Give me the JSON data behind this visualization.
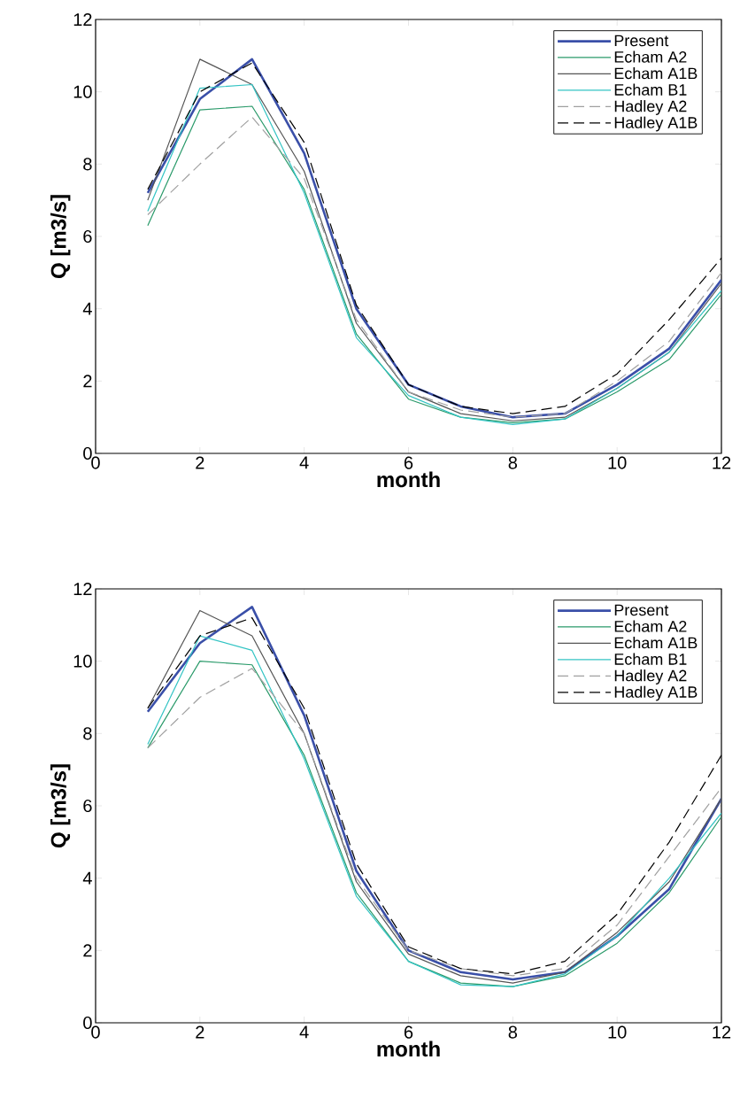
{
  "chart_data": [
    {
      "type": "line",
      "xlabel": "month",
      "ylabel": "Q [m3/s]",
      "x": [
        1,
        2,
        3,
        4,
        5,
        6,
        7,
        8,
        9,
        10,
        11,
        12
      ],
      "xlim": [
        0,
        12
      ],
      "ylim": [
        0,
        12
      ],
      "xticks": [
        0,
        2,
        4,
        6,
        8,
        10,
        12
      ],
      "yticks": [
        0,
        2,
        4,
        6,
        8,
        10,
        12
      ],
      "legend": "top right",
      "grid": false,
      "series": [
        {
          "name": "Present",
          "color": "#3a4fa8",
          "line_style": "solid",
          "values": [
            7.2,
            9.8,
            10.9,
            8.3,
            4.0,
            1.9,
            1.3,
            1.0,
            1.1,
            1.9,
            2.9,
            4.8
          ]
        },
        {
          "name": "Echam A2",
          "color": "#2a9a6a",
          "line_style": "solid",
          "values": [
            6.3,
            9.5,
            9.6,
            7.3,
            3.3,
            1.5,
            1.0,
            0.85,
            0.95,
            1.7,
            2.6,
            4.4
          ]
        },
        {
          "name": "Echam A1B",
          "color": "#555555",
          "line_style": "solid",
          "values": [
            7.0,
            10.9,
            10.2,
            7.8,
            3.6,
            1.7,
            1.1,
            0.9,
            1.0,
            1.8,
            2.8,
            4.7
          ]
        },
        {
          "name": "Echam B1",
          "color": "#33c4c4",
          "line_style": "solid",
          "values": [
            6.7,
            10.1,
            10.2,
            7.2,
            3.2,
            1.6,
            1.0,
            0.8,
            0.95,
            1.8,
            2.8,
            4.5
          ]
        },
        {
          "name": "Hadley A2",
          "color": "#a0a0a0",
          "line_style": "dashed",
          "values": [
            6.6,
            8.0,
            9.3,
            7.6,
            3.7,
            1.7,
            1.2,
            1.0,
            1.1,
            2.0,
            3.1,
            5.0
          ]
        },
        {
          "name": "Hadley A1B",
          "color": "#000000",
          "line_style": "dashed",
          "values": [
            7.3,
            10.0,
            10.8,
            8.6,
            4.1,
            1.9,
            1.3,
            1.1,
            1.3,
            2.2,
            3.7,
            5.4
          ]
        }
      ]
    },
    {
      "type": "line",
      "xlabel": "month",
      "ylabel": "Q [m3/s]",
      "x": [
        1,
        2,
        3,
        4,
        5,
        6,
        7,
        8,
        9,
        10,
        11,
        12
      ],
      "xlim": [
        0,
        12
      ],
      "ylim": [
        0,
        12
      ],
      "xticks": [
        0,
        2,
        4,
        6,
        8,
        10,
        12
      ],
      "yticks": [
        0,
        2,
        4,
        6,
        8,
        10,
        12
      ],
      "legend": "top right",
      "grid": false,
      "series": [
        {
          "name": "Present",
          "color": "#3a4fa8",
          "line_style": "solid",
          "values": [
            8.6,
            10.5,
            11.5,
            8.5,
            4.2,
            2.0,
            1.4,
            1.2,
            1.4,
            2.4,
            3.7,
            6.2
          ]
        },
        {
          "name": "Echam A2",
          "color": "#2a9a6a",
          "line_style": "solid",
          "values": [
            7.6,
            10.0,
            9.9,
            7.4,
            3.6,
            1.7,
            1.1,
            1.0,
            1.3,
            2.2,
            3.6,
            5.7
          ]
        },
        {
          "name": "Echam A1B",
          "color": "#555555",
          "line_style": "solid",
          "values": [
            8.7,
            11.4,
            10.7,
            8.0,
            3.9,
            1.9,
            1.3,
            1.1,
            1.4,
            2.5,
            3.9,
            6.2
          ]
        },
        {
          "name": "Echam B1",
          "color": "#33c4c4",
          "line_style": "solid",
          "values": [
            7.7,
            10.7,
            10.3,
            7.3,
            3.5,
            1.7,
            1.05,
            1.0,
            1.35,
            2.4,
            4.0,
            5.8
          ]
        },
        {
          "name": "Hadley A2",
          "color": "#a0a0a0",
          "line_style": "dashed",
          "values": [
            7.6,
            9.0,
            9.8,
            8.0,
            4.0,
            2.0,
            1.5,
            1.3,
            1.5,
            2.7,
            4.6,
            6.5
          ]
        },
        {
          "name": "Hadley A1B",
          "color": "#000000",
          "line_style": "dashed",
          "values": [
            8.7,
            10.7,
            11.2,
            8.7,
            4.4,
            2.1,
            1.5,
            1.35,
            1.7,
            3.0,
            5.0,
            7.4
          ]
        }
      ]
    }
  ]
}
